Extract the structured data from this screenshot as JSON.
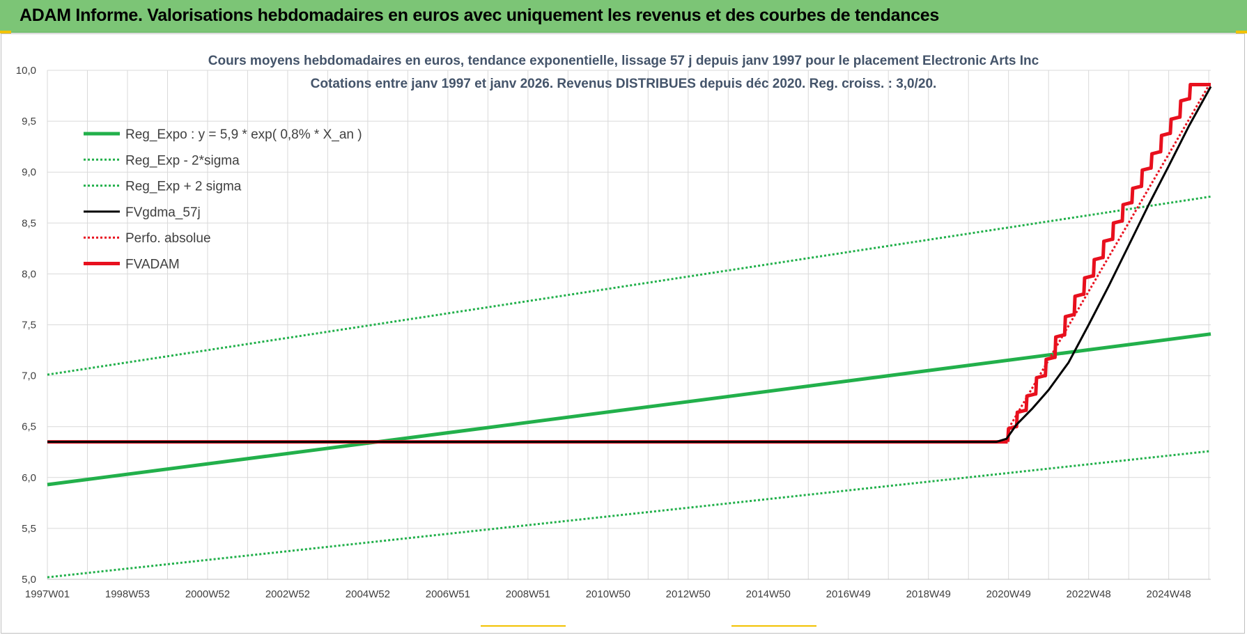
{
  "header": {
    "title": "ADAM Informe. Valorisations hebdomadaires en euros avec uniquement les revenus et des courbes de tendances"
  },
  "colors": {
    "header_bg": "#7cc576",
    "reg_expo": "#22b04b",
    "sigma": "#22b04b",
    "fvgdma": "#000000",
    "perfo": "#e8101e",
    "fvadam": "#e8101e",
    "grid": "#d9d9d9"
  },
  "chart_data": {
    "type": "line",
    "title_lines": [
      "Cours moyens hebdomadaires en euros, tendance exponentielle, lissage 57 j depuis janv 1997 pour le placement Electronic Arts Inc",
      "Cotations entre janv 1997 et janv 2026. Revenus DISTRIBUES depuis déc 2020. Reg. croiss. : 3,0/20."
    ],
    "xlabel": "",
    "ylabel": "",
    "x_range": [
      1997.0,
      2026.05
    ],
    "ylim": [
      5.0,
      10.0
    ],
    "y_ticks": [
      "5,0",
      "5,5",
      "6,0",
      "6,5",
      "7,0",
      "7,5",
      "8,0",
      "8,5",
      "9,0",
      "9,5",
      "10,0"
    ],
    "x_ticks": [
      {
        "label": "1997W01",
        "year": 1997.0
      },
      {
        "label": "1998W53",
        "year": 1999.0
      },
      {
        "label": "2000W52",
        "year": 2001.0
      },
      {
        "label": "2002W52",
        "year": 2003.0
      },
      {
        "label": "2004W52",
        "year": 2005.0
      },
      {
        "label": "2006W51",
        "year": 2007.0
      },
      {
        "label": "2008W51",
        "year": 2009.0
      },
      {
        "label": "2010W50",
        "year": 2011.0
      },
      {
        "label": "2012W50",
        "year": 2013.0
      },
      {
        "label": "2014W50",
        "year": 2015.0
      },
      {
        "label": "2016W49",
        "year": 2017.0
      },
      {
        "label": "2018W49",
        "year": 2019.0
      },
      {
        "label": "2020W49",
        "year": 2021.0
      },
      {
        "label": "2022W48",
        "year": 2023.0
      },
      {
        "label": "2024W48",
        "year": 2025.0
      }
    ],
    "grid": true,
    "legend_position": "top-left",
    "series": [
      {
        "name": "Reg_Expo : y = 5,9 * exp( 0,8% *  X_an )",
        "style": "solid-thick",
        "color": "#22b04b",
        "points": [
          [
            1997.0,
            5.93
          ],
          [
            2026.05,
            7.41
          ]
        ]
      },
      {
        "name": "Reg_Exp - 2*sigma",
        "style": "dotted",
        "color": "#22b04b",
        "points": [
          [
            1997.0,
            5.02
          ],
          [
            2026.05,
            6.26
          ]
        ]
      },
      {
        "name": "Reg_Exp + 2 sigma",
        "style": "dotted",
        "color": "#22b04b",
        "points": [
          [
            1997.0,
            7.01
          ],
          [
            2026.05,
            8.76
          ]
        ]
      },
      {
        "name": "FVgdma_57j",
        "style": "solid",
        "color": "#000000",
        "points": [
          [
            1997.0,
            6.35
          ],
          [
            2020.7,
            6.35
          ],
          [
            2020.95,
            6.38
          ],
          [
            2021.2,
            6.52
          ],
          [
            2021.6,
            6.68
          ],
          [
            2022.0,
            6.86
          ],
          [
            2022.5,
            7.13
          ],
          [
            2023.0,
            7.5
          ],
          [
            2023.5,
            7.88
          ],
          [
            2024.0,
            8.28
          ],
          [
            2024.5,
            8.68
          ],
          [
            2025.0,
            9.06
          ],
          [
            2025.5,
            9.45
          ],
          [
            2026.05,
            9.84
          ]
        ]
      },
      {
        "name": "Perfo. absolue",
        "style": "dotted",
        "color": "#e8101e",
        "points": [
          [
            1997.0,
            6.35
          ],
          [
            2020.98,
            6.35
          ],
          [
            2021.0,
            6.48
          ],
          [
            2026.0,
            9.85
          ]
        ]
      },
      {
        "name": "FVADAM",
        "style": "solid-thick",
        "color": "#e8101e",
        "flat_until": 2020.98,
        "flat_value": 6.35,
        "steps": [
          [
            2020.98,
            6.35,
            6.48
          ],
          [
            2021.2,
            6.5,
            6.64
          ],
          [
            2021.44,
            6.66,
            6.8
          ],
          [
            2021.68,
            6.82,
            6.98
          ],
          [
            2021.92,
            7.0,
            7.16
          ],
          [
            2022.16,
            7.18,
            7.38
          ],
          [
            2022.4,
            7.4,
            7.58
          ],
          [
            2022.64,
            7.6,
            7.78
          ],
          [
            2022.88,
            7.8,
            7.96
          ],
          [
            2023.12,
            7.98,
            8.14
          ],
          [
            2023.36,
            8.16,
            8.32
          ],
          [
            2023.6,
            8.34,
            8.5
          ],
          [
            2023.84,
            8.52,
            8.68
          ],
          [
            2024.08,
            8.7,
            8.84
          ],
          [
            2024.32,
            8.86,
            9.02
          ],
          [
            2024.56,
            9.04,
            9.18
          ],
          [
            2024.8,
            9.2,
            9.36
          ],
          [
            2025.04,
            9.38,
            9.52
          ],
          [
            2025.28,
            9.54,
            9.7
          ],
          [
            2025.52,
            9.72,
            9.86
          ]
        ],
        "end": [
          2026.05,
          9.86
        ]
      }
    ]
  }
}
